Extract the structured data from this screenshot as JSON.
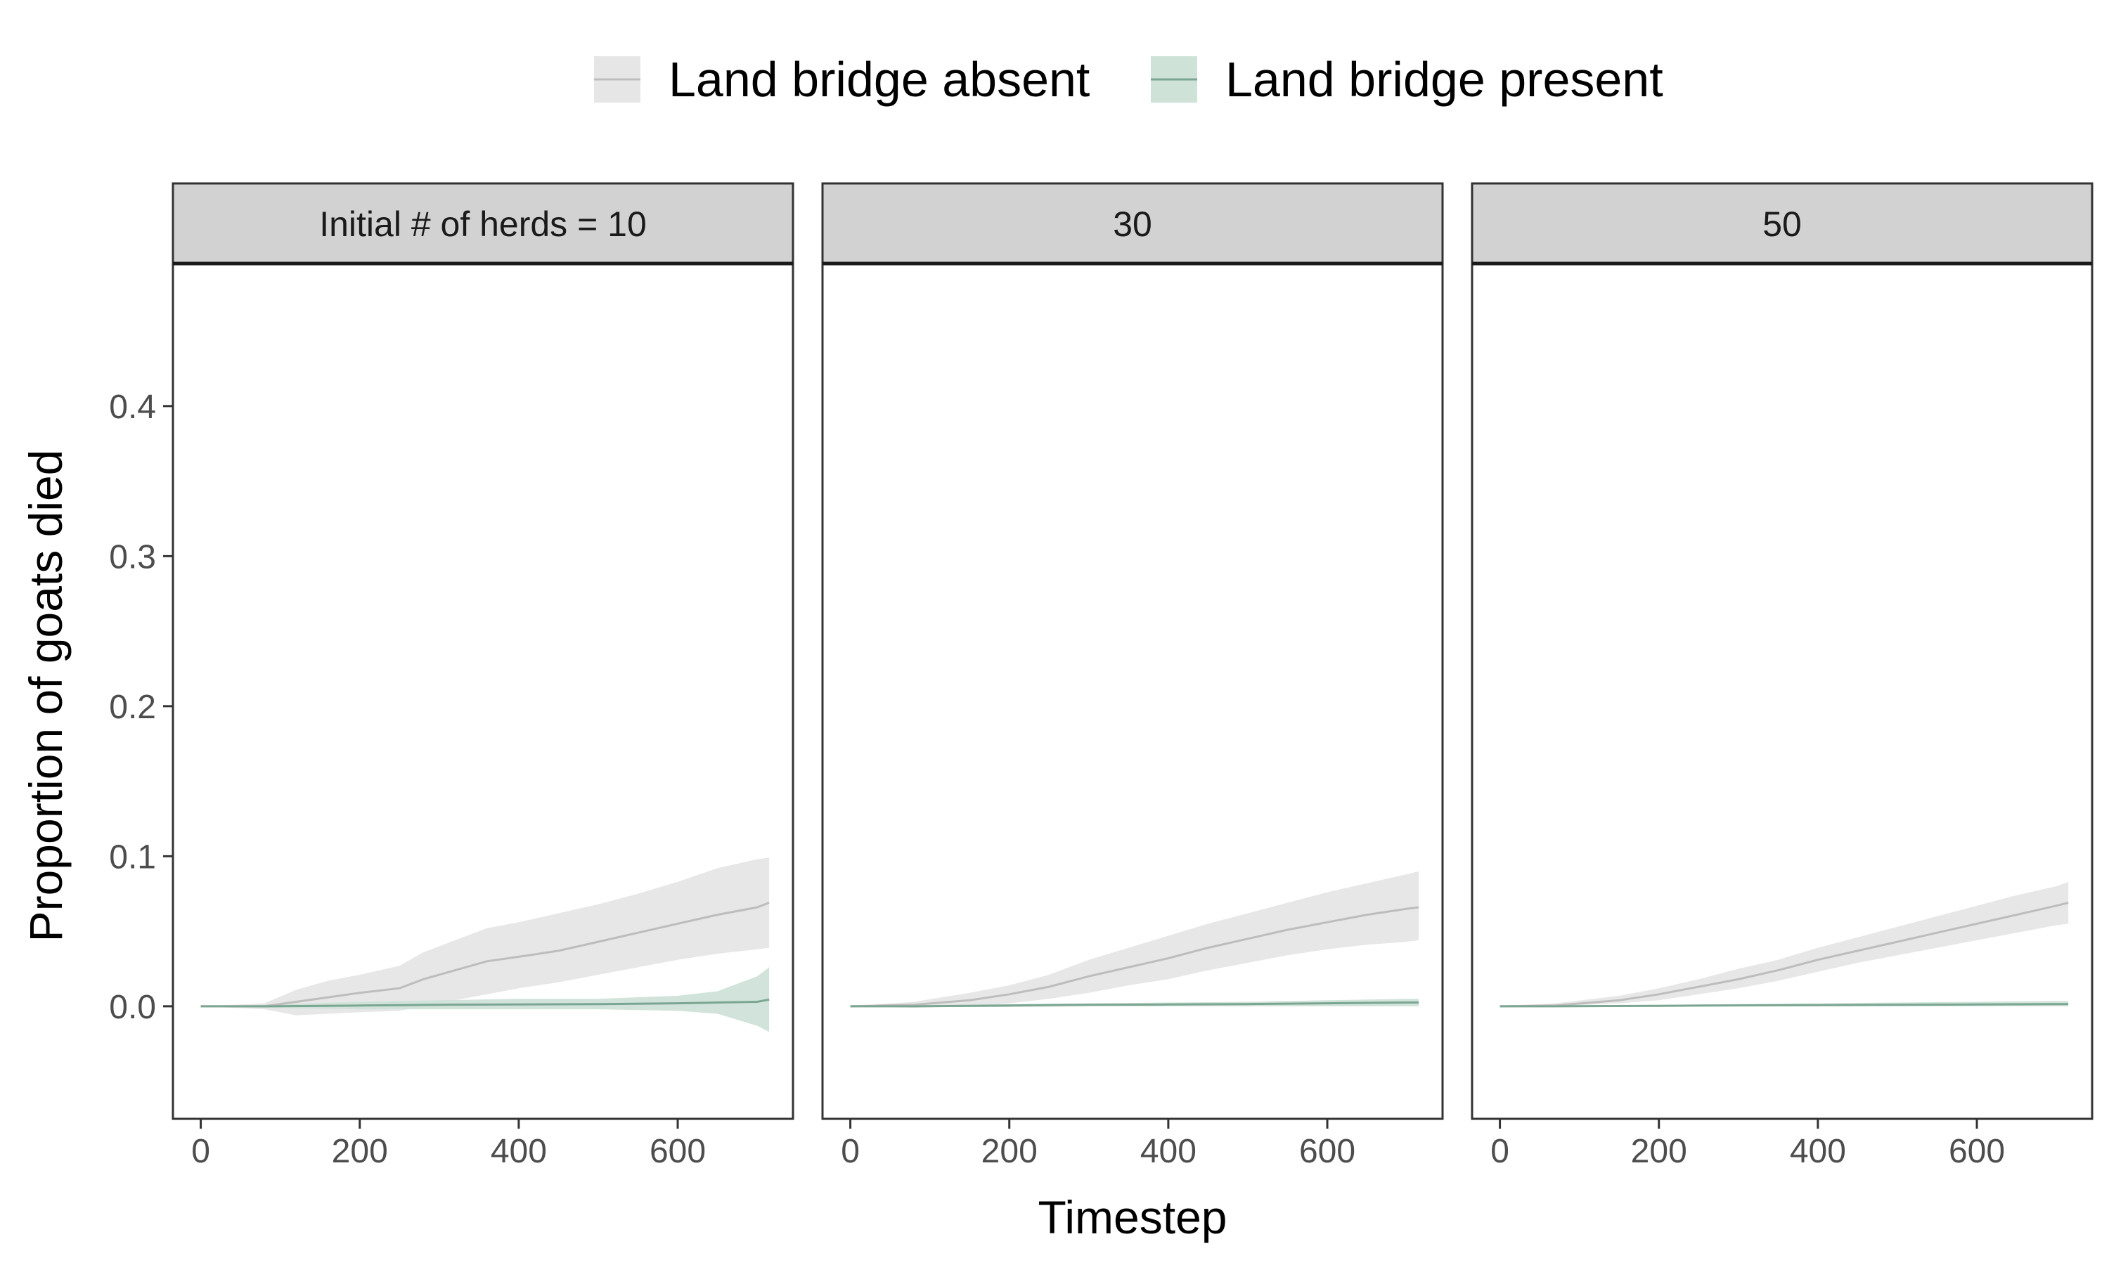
{
  "chart_data": {
    "type": "line",
    "xlabel": "Timestep",
    "ylabel": "Proportion of goats died",
    "xlim": [
      -35,
      745
    ],
    "ylim": [
      -0.075,
      0.495
    ],
    "x_ticks": [
      0,
      200,
      400,
      600
    ],
    "y_ticks": [
      0.0,
      0.1,
      0.2,
      0.3,
      0.4
    ],
    "y_tick_labels": [
      "0.0",
      "0.1",
      "0.2",
      "0.3",
      "0.4"
    ],
    "legend": {
      "position": "top",
      "entries": [
        {
          "name": "Land bridge absent",
          "line_color": "#bdbdbd",
          "fill_color": "#e6e6e6"
        },
        {
          "name": "Land bridge present",
          "line_color": "#7aa692",
          "fill_color": "#cfe2d8"
        }
      ]
    },
    "panels": [
      {
        "strip_label": "Initial # of herds = 10",
        "series": [
          {
            "name": "Land bridge absent",
            "x": [
              0,
              80,
              120,
              160,
              200,
              250,
              280,
              320,
              360,
              400,
              450,
              500,
              550,
              600,
              650,
              700,
              715
            ],
            "y": [
              0,
              0.0,
              0.003,
              0.006,
              0.009,
              0.012,
              0.018,
              0.024,
              0.03,
              0.033,
              0.037,
              0.043,
              0.049,
              0.055,
              0.061,
              0.066,
              0.069
            ],
            "lower": [
              0,
              -0.002,
              -0.006,
              -0.005,
              -0.004,
              -0.003,
              0.0,
              0.004,
              0.008,
              0.012,
              0.016,
              0.021,
              0.026,
              0.031,
              0.035,
              0.038,
              0.039
            ],
            "upper": [
              0,
              0.002,
              0.011,
              0.017,
              0.021,
              0.027,
              0.036,
              0.044,
              0.052,
              0.056,
              0.062,
              0.068,
              0.075,
              0.083,
              0.092,
              0.098,
              0.099
            ]
          },
          {
            "name": "Land bridge present",
            "x": [
              0,
              80,
              200,
              300,
              400,
              500,
              600,
              650,
              700,
              715
            ],
            "y": [
              0,
              0,
              0.0005,
              0.001,
              0.0012,
              0.0015,
              0.002,
              0.0025,
              0.003,
              0.0045
            ],
            "lower": [
              0,
              -0.001,
              -0.002,
              -0.002,
              -0.002,
              -0.002,
              -0.003,
              -0.005,
              -0.013,
              -0.017
            ],
            "upper": [
              0,
              0.001,
              0.003,
              0.004,
              0.005,
              0.005,
              0.007,
              0.01,
              0.02,
              0.026
            ]
          }
        ]
      },
      {
        "strip_label": "30",
        "series": [
          {
            "name": "Land bridge absent",
            "x": [
              0,
              80,
              150,
              200,
              250,
              300,
              350,
              400,
              450,
              500,
              550,
              600,
              650,
              700,
              715
            ],
            "y": [
              0,
              0.001,
              0.004,
              0.008,
              0.013,
              0.02,
              0.026,
              0.032,
              0.039,
              0.045,
              0.051,
              0.056,
              0.061,
              0.065,
              0.066
            ],
            "lower": [
              0,
              -0.001,
              0.0,
              0.002,
              0.005,
              0.009,
              0.014,
              0.018,
              0.024,
              0.029,
              0.034,
              0.038,
              0.041,
              0.043,
              0.044
            ],
            "upper": [
              0,
              0.003,
              0.009,
              0.014,
              0.021,
              0.031,
              0.039,
              0.047,
              0.055,
              0.062,
              0.069,
              0.076,
              0.082,
              0.088,
              0.09
            ]
          },
          {
            "name": "Land bridge present",
            "x": [
              0,
              80,
              200,
              300,
              400,
              500,
              600,
              700,
              715
            ],
            "y": [
              0,
              0,
              0.0005,
              0.001,
              0.0012,
              0.0015,
              0.002,
              0.0025,
              0.0025
            ],
            "lower": [
              0,
              -0.0005,
              -0.0005,
              0.0,
              0.0,
              0.0,
              0.0,
              0.0,
              0.0
            ],
            "upper": [
              0,
              0.0008,
              0.0015,
              0.002,
              0.0025,
              0.003,
              0.004,
              0.005,
              0.005
            ]
          }
        ]
      },
      {
        "strip_label": "50",
        "series": [
          {
            "name": "Land bridge absent",
            "x": [
              0,
              70,
              150,
              200,
              250,
              300,
              350,
              400,
              450,
              500,
              550,
              600,
              650,
              700,
              715
            ],
            "y": [
              0,
              0.0005,
              0.004,
              0.008,
              0.013,
              0.018,
              0.024,
              0.031,
              0.037,
              0.043,
              0.049,
              0.055,
              0.061,
              0.067,
              0.069
            ],
            "lower": [
              0,
              0.0,
              0.002,
              0.004,
              0.008,
              0.012,
              0.017,
              0.023,
              0.029,
              0.034,
              0.039,
              0.044,
              0.049,
              0.054,
              0.055
            ],
            "upper": [
              0,
              0.002,
              0.007,
              0.012,
              0.018,
              0.025,
              0.031,
              0.039,
              0.046,
              0.053,
              0.06,
              0.067,
              0.074,
              0.08,
              0.083
            ]
          },
          {
            "name": "Land bridge present",
            "x": [
              0,
              70,
              200,
              300,
              400,
              500,
              600,
              700,
              715
            ],
            "y": [
              0,
              0,
              0.0003,
              0.0006,
              0.0008,
              0.001,
              0.0012,
              0.0015,
              0.0015
            ],
            "lower": [
              0,
              0.0,
              0.0,
              0.0,
              0.0,
              0.0,
              0.0,
              0.0,
              0.0
            ],
            "upper": [
              0,
              0.0005,
              0.001,
              0.0015,
              0.002,
              0.0025,
              0.003,
              0.0035,
              0.0035
            ]
          }
        ]
      }
    ]
  }
}
